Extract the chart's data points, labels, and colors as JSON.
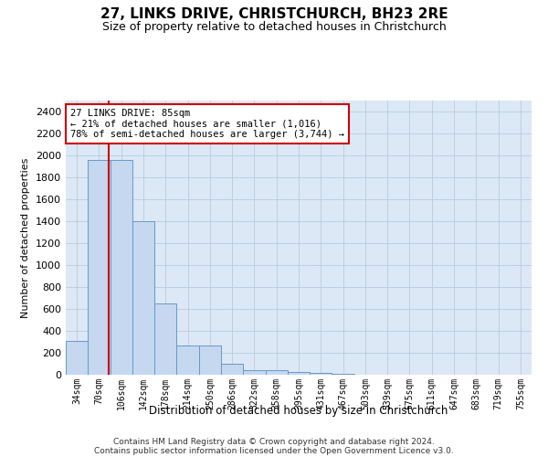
{
  "title1": "27, LINKS DRIVE, CHRISTCHURCH, BH23 2RE",
  "title2": "Size of property relative to detached houses in Christchurch",
  "xlabel": "Distribution of detached houses by size in Christchurch",
  "ylabel": "Number of detached properties",
  "bar_labels": [
    "34sqm",
    "70sqm",
    "106sqm",
    "142sqm",
    "178sqm",
    "214sqm",
    "250sqm",
    "286sqm",
    "322sqm",
    "358sqm",
    "395sqm",
    "431sqm",
    "467sqm",
    "503sqm",
    "539sqm",
    "575sqm",
    "611sqm",
    "647sqm",
    "683sqm",
    "719sqm",
    "755sqm"
  ],
  "bar_values": [
    305,
    1960,
    1960,
    1400,
    650,
    270,
    270,
    100,
    45,
    40,
    25,
    20,
    10,
    0,
    0,
    0,
    0,
    0,
    0,
    0,
    0
  ],
  "bar_color": "#c5d8f0",
  "bar_edgecolor": "#6699cc",
  "vline_x": 1.42,
  "vline_color": "#cc0000",
  "annotation_text": "27 LINKS DRIVE: 85sqm\n← 21% of detached houses are smaller (1,016)\n78% of semi-detached houses are larger (3,744) →",
  "annotation_box_color": "#ffffff",
  "annotation_box_edgecolor": "#cc0000",
  "ylim": [
    0,
    2500
  ],
  "yticks": [
    0,
    200,
    400,
    600,
    800,
    1000,
    1200,
    1400,
    1600,
    1800,
    2000,
    2200,
    2400
  ],
  "footer1": "Contains HM Land Registry data © Crown copyright and database right 2024.",
  "footer2": "Contains public sector information licensed under the Open Government Licence v3.0.",
  "plot_bg_color": "#dce8f5",
  "grid_color": "#b8ccdd",
  "fig_bg_color": "#ffffff"
}
